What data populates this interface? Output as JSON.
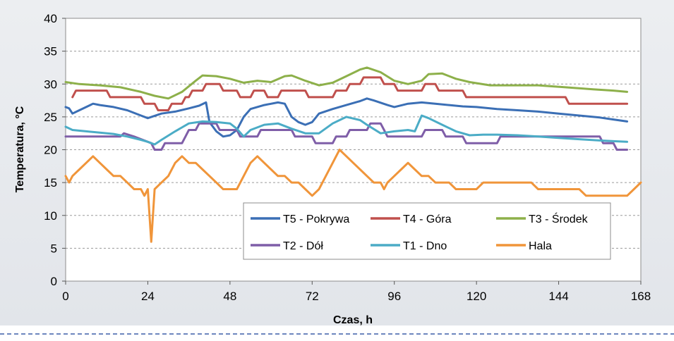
{
  "chart_data": {
    "type": "line",
    "xlabel": "Czas, h",
    "ylabel": "Temperatura, °C",
    "xlim": [
      0,
      168
    ],
    "ylim": [
      0,
      40
    ],
    "xticks": [
      0,
      24,
      48,
      72,
      96,
      120,
      144,
      168
    ],
    "yticks": [
      0,
      5,
      10,
      15,
      20,
      25,
      30,
      35,
      40
    ],
    "grid": "horizontal dashed",
    "legend_position": "bottom-right inside",
    "series": [
      {
        "name": "T5 - Pokrywa",
        "color": "#3b6fb5",
        "points": [
          [
            0,
            26.5
          ],
          [
            1,
            26.3
          ],
          [
            2,
            25.5
          ],
          [
            4,
            26
          ],
          [
            6,
            26.5
          ],
          [
            8,
            27
          ],
          [
            10,
            26.8
          ],
          [
            14,
            26.5
          ],
          [
            18,
            26
          ],
          [
            22,
            25.2
          ],
          [
            24,
            24.8
          ],
          [
            28,
            25.5
          ],
          [
            32,
            25.8
          ],
          [
            36,
            26.3
          ],
          [
            39,
            26.7
          ],
          [
            41,
            27.2
          ],
          [
            42,
            24.2
          ],
          [
            44,
            22.8
          ],
          [
            46,
            22
          ],
          [
            48,
            22.2
          ],
          [
            50,
            23
          ],
          [
            52,
            25
          ],
          [
            54,
            26.2
          ],
          [
            58,
            26.8
          ],
          [
            62,
            27.2
          ],
          [
            64,
            27
          ],
          [
            66,
            25
          ],
          [
            68,
            24.2
          ],
          [
            70,
            23.8
          ],
          [
            72,
            24.2
          ],
          [
            74,
            25.5
          ],
          [
            78,
            26.2
          ],
          [
            82,
            26.8
          ],
          [
            86,
            27.4
          ],
          [
            88,
            27.8
          ],
          [
            90,
            27.5
          ],
          [
            94,
            26.8
          ],
          [
            96,
            26.5
          ],
          [
            100,
            27
          ],
          [
            104,
            27.2
          ],
          [
            108,
            27
          ],
          [
            112,
            26.8
          ],
          [
            116,
            26.6
          ],
          [
            120,
            26.5
          ],
          [
            126,
            26.2
          ],
          [
            132,
            26
          ],
          [
            138,
            25.8
          ],
          [
            144,
            25.5
          ],
          [
            150,
            25.2
          ],
          [
            156,
            24.9
          ],
          [
            160,
            24.6
          ],
          [
            164,
            24.3
          ]
        ]
      },
      {
        "name": "T4 - Góra",
        "color": "#c0504d",
        "points": [
          [
            2,
            28
          ],
          [
            3,
            29
          ],
          [
            12,
            29
          ],
          [
            13,
            28
          ],
          [
            22,
            28
          ],
          [
            23,
            27
          ],
          [
            26,
            27
          ],
          [
            27,
            26
          ],
          [
            30,
            26
          ],
          [
            31,
            27
          ],
          [
            34,
            27
          ],
          [
            35,
            28
          ],
          [
            36,
            28
          ],
          [
            37,
            29
          ],
          [
            40,
            29
          ],
          [
            41,
            30
          ],
          [
            45,
            30
          ],
          [
            46,
            29
          ],
          [
            50,
            29
          ],
          [
            51,
            28
          ],
          [
            54,
            28
          ],
          [
            55,
            29
          ],
          [
            58,
            29
          ],
          [
            59,
            28
          ],
          [
            62,
            28
          ],
          [
            63,
            29
          ],
          [
            70,
            29
          ],
          [
            71,
            28
          ],
          [
            78,
            28
          ],
          [
            79,
            29
          ],
          [
            82,
            29
          ],
          [
            83,
            30
          ],
          [
            86,
            30
          ],
          [
            87,
            31
          ],
          [
            92,
            31
          ],
          [
            93,
            30
          ],
          [
            96,
            30
          ],
          [
            97,
            29
          ],
          [
            104,
            29
          ],
          [
            105,
            30
          ],
          [
            108,
            30
          ],
          [
            109,
            29
          ],
          [
            116,
            29
          ],
          [
            117,
            28
          ],
          [
            146,
            28
          ],
          [
            147,
            27
          ],
          [
            164,
            27
          ]
        ]
      },
      {
        "name": "T3 - Środek",
        "color": "#8db04a",
        "points": [
          [
            0,
            30.3
          ],
          [
            4,
            30
          ],
          [
            10,
            29.8
          ],
          [
            16,
            29.5
          ],
          [
            22,
            28.8
          ],
          [
            26,
            28.2
          ],
          [
            30,
            27.8
          ],
          [
            34,
            28.8
          ],
          [
            38,
            30.5
          ],
          [
            40,
            31.3
          ],
          [
            44,
            31.2
          ],
          [
            48,
            30.8
          ],
          [
            52,
            30.2
          ],
          [
            56,
            30.5
          ],
          [
            60,
            30.3
          ],
          [
            64,
            31.2
          ],
          [
            66,
            31.3
          ],
          [
            70,
            30.5
          ],
          [
            74,
            29.8
          ],
          [
            78,
            30.2
          ],
          [
            82,
            31.2
          ],
          [
            86,
            32.2
          ],
          [
            88,
            32.5
          ],
          [
            92,
            31.8
          ],
          [
            96,
            30.5
          ],
          [
            100,
            30
          ],
          [
            104,
            30.5
          ],
          [
            106,
            31.5
          ],
          [
            110,
            31.6
          ],
          [
            114,
            30.8
          ],
          [
            118,
            30.3
          ],
          [
            124,
            29.8
          ],
          [
            130,
            29.8
          ],
          [
            138,
            29.8
          ],
          [
            146,
            29.5
          ],
          [
            154,
            29.2
          ],
          [
            160,
            29
          ],
          [
            164,
            28.8
          ]
        ]
      },
      {
        "name": "T2 - Dół",
        "color": "#7f5ea8",
        "points": [
          [
            0,
            22
          ],
          [
            16,
            22
          ],
          [
            17,
            22.5
          ],
          [
            20,
            22
          ],
          [
            25,
            21
          ],
          [
            26,
            20
          ],
          [
            28,
            20
          ],
          [
            29,
            21
          ],
          [
            34,
            21
          ],
          [
            35,
            22
          ],
          [
            36,
            23
          ],
          [
            38,
            23
          ],
          [
            39,
            24
          ],
          [
            44,
            24
          ],
          [
            45,
            23
          ],
          [
            50,
            23
          ],
          [
            51,
            22
          ],
          [
            56,
            22
          ],
          [
            57,
            23
          ],
          [
            66,
            23
          ],
          [
            67,
            22
          ],
          [
            72,
            22
          ],
          [
            73,
            21
          ],
          [
            78,
            21
          ],
          [
            79,
            22
          ],
          [
            82,
            22
          ],
          [
            83,
            23
          ],
          [
            88,
            23
          ],
          [
            89,
            24
          ],
          [
            92,
            24
          ],
          [
            93,
            23
          ],
          [
            94,
            22
          ],
          [
            104,
            22
          ],
          [
            105,
            23
          ],
          [
            110,
            23
          ],
          [
            111,
            22
          ],
          [
            116,
            22
          ],
          [
            117,
            21
          ],
          [
            126,
            21
          ],
          [
            127,
            22
          ],
          [
            156,
            22
          ],
          [
            157,
            21
          ],
          [
            160,
            21
          ],
          [
            161,
            20
          ],
          [
            164,
            20
          ]
        ]
      },
      {
        "name": "T1 - Dno",
        "color": "#4bacc6",
        "points": [
          [
            0,
            23.5
          ],
          [
            2,
            23
          ],
          [
            6,
            22.8
          ],
          [
            10,
            22.6
          ],
          [
            14,
            22.4
          ],
          [
            18,
            22
          ],
          [
            22,
            21.5
          ],
          [
            24,
            21.2
          ],
          [
            26,
            20.8
          ],
          [
            28,
            21.5
          ],
          [
            32,
            22.8
          ],
          [
            36,
            24
          ],
          [
            40,
            24.3
          ],
          [
            44,
            24.2
          ],
          [
            48,
            24
          ],
          [
            50,
            23.2
          ],
          [
            52,
            22
          ],
          [
            54,
            23
          ],
          [
            58,
            23.8
          ],
          [
            62,
            24
          ],
          [
            66,
            23.2
          ],
          [
            70,
            22.5
          ],
          [
            74,
            22.5
          ],
          [
            78,
            24
          ],
          [
            82,
            25
          ],
          [
            86,
            24.5
          ],
          [
            88,
            23.8
          ],
          [
            92,
            22.5
          ],
          [
            96,
            22.8
          ],
          [
            100,
            23
          ],
          [
            102,
            22.8
          ],
          [
            104,
            25.2
          ],
          [
            106,
            24.8
          ],
          [
            110,
            23.8
          ],
          [
            114,
            22.8
          ],
          [
            118,
            22.2
          ],
          [
            122,
            22.3
          ],
          [
            126,
            22.3
          ],
          [
            132,
            22.2
          ],
          [
            138,
            22
          ],
          [
            144,
            21.8
          ],
          [
            150,
            21.6
          ],
          [
            156,
            21.4
          ],
          [
            160,
            21.3
          ],
          [
            164,
            21.2
          ]
        ]
      },
      {
        "name": "Hala",
        "color": "#f0953a",
        "points": [
          [
            0,
            16
          ],
          [
            1,
            15
          ],
          [
            2,
            16
          ],
          [
            4,
            17
          ],
          [
            6,
            18
          ],
          [
            8,
            19
          ],
          [
            10,
            18
          ],
          [
            12,
            17
          ],
          [
            14,
            16
          ],
          [
            16,
            16
          ],
          [
            18,
            15
          ],
          [
            20,
            14
          ],
          [
            22,
            14
          ],
          [
            23,
            13
          ],
          [
            24,
            14
          ],
          [
            25,
            6
          ],
          [
            26,
            14
          ],
          [
            28,
            15
          ],
          [
            30,
            16
          ],
          [
            32,
            18
          ],
          [
            34,
            19
          ],
          [
            36,
            18
          ],
          [
            38,
            18
          ],
          [
            40,
            17
          ],
          [
            42,
            16
          ],
          [
            44,
            15
          ],
          [
            46,
            14
          ],
          [
            50,
            14
          ],
          [
            52,
            16
          ],
          [
            54,
            18
          ],
          [
            56,
            19
          ],
          [
            58,
            18
          ],
          [
            60,
            17
          ],
          [
            62,
            16
          ],
          [
            64,
            16
          ],
          [
            66,
            15
          ],
          [
            68,
            15
          ],
          [
            70,
            14
          ],
          [
            72,
            13
          ],
          [
            74,
            14
          ],
          [
            76,
            16
          ],
          [
            78,
            18
          ],
          [
            80,
            20
          ],
          [
            82,
            19
          ],
          [
            84,
            18
          ],
          [
            86,
            17
          ],
          [
            88,
            16
          ],
          [
            90,
            15
          ],
          [
            92,
            15
          ],
          [
            93,
            14
          ],
          [
            94,
            15
          ],
          [
            96,
            16
          ],
          [
            98,
            17
          ],
          [
            100,
            18
          ],
          [
            102,
            17
          ],
          [
            104,
            16
          ],
          [
            106,
            16
          ],
          [
            108,
            15
          ],
          [
            112,
            15
          ],
          [
            114,
            14
          ],
          [
            120,
            14
          ],
          [
            122,
            15
          ],
          [
            136,
            15
          ],
          [
            138,
            14
          ],
          [
            150,
            14
          ],
          [
            152,
            13
          ],
          [
            164,
            13
          ],
          [
            166,
            14
          ],
          [
            168,
            15
          ]
        ]
      }
    ]
  }
}
